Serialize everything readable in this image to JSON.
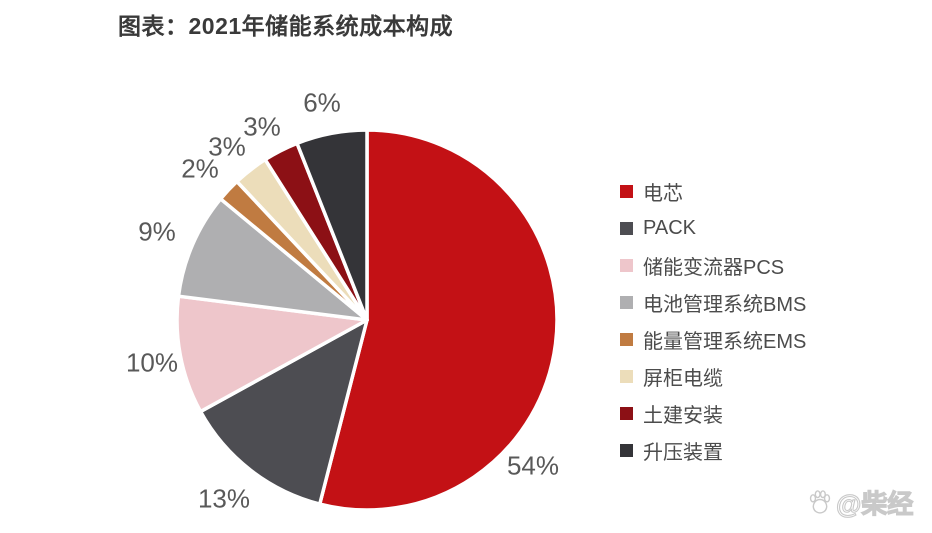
{
  "header": {
    "title": "图表：2021年储能系统成本构成"
  },
  "chart_data": {
    "type": "pie",
    "title": "2021年储能系统成本构成",
    "unit": "%",
    "legend_position": "right",
    "start_angle_deg": 0,
    "direction": "clockwise",
    "slices": [
      {
        "id": "cell",
        "name": "电芯",
        "value": 54,
        "pct_label": "54%",
        "color": "#c31115"
      },
      {
        "id": "pack",
        "name": "PACK",
        "value": 13,
        "pct_label": "13%",
        "color": "#4d4d52"
      },
      {
        "id": "pcs",
        "name": "储能变流器PCS",
        "value": 10,
        "pct_label": "10%",
        "color": "#eec6cb"
      },
      {
        "id": "bms",
        "name": "电池管理系统BMS",
        "value": 9,
        "pct_label": "9%",
        "color": "#afafb1"
      },
      {
        "id": "ems",
        "name": "能量管理系统EMS",
        "value": 2,
        "pct_label": "2%",
        "color": "#c07b41"
      },
      {
        "id": "cabinet-cable",
        "name": "屏柜电缆",
        "value": 3,
        "pct_label": "3%",
        "color": "#ecddba"
      },
      {
        "id": "civil-construction",
        "name": "土建安装",
        "value": 3,
        "pct_label": "3%",
        "color": "#8c1015"
      },
      {
        "id": "booster-device",
        "name": "升压装置",
        "value": 6,
        "pct_label": "6%",
        "color": "#343438"
      }
    ]
  },
  "colors": {
    "title_text": "#3a3a3a",
    "label_text": "#595959",
    "legend_text": "#4c4c4c",
    "background": "#ffffff"
  },
  "watermark": {
    "text": "@柴经",
    "icon": "baidu-paw-icon"
  }
}
